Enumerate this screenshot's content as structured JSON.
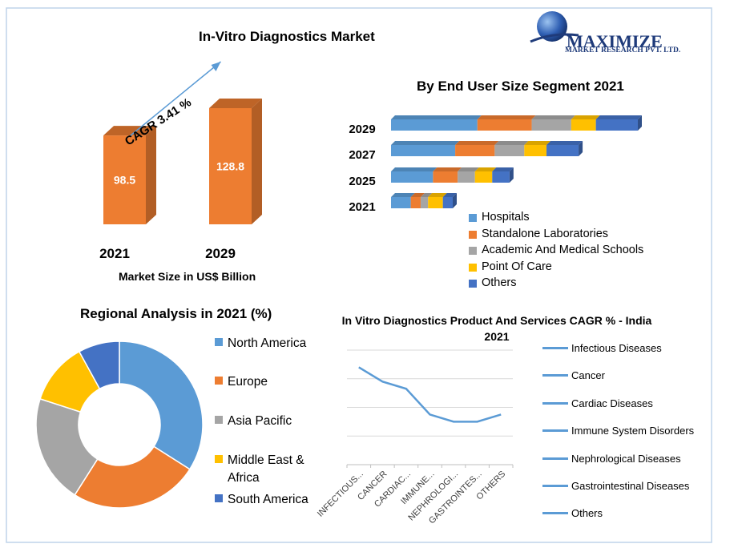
{
  "page_title": "In-Vitro Diagnostics Market",
  "brand": {
    "name": "MAXIMIZE",
    "tagline": "MARKET RESEARCH PVT. LTD."
  },
  "colors": {
    "orange_bar": "#ED7D31",
    "blue": "#5B9BD5",
    "orange": "#ED7D31",
    "gray": "#A5A5A5",
    "yellow": "#FFC000",
    "dark_blue": "#4472C4",
    "border": "#BFD4EA"
  },
  "chart_data": [
    {
      "type": "bar",
      "categories": [
        "2021",
        "2029"
      ],
      "values": [
        98.5,
        128.8
      ],
      "title": "",
      "xlabel": "Market Size in US$ Billion",
      "annotation": "CAGR 3.41 %"
    },
    {
      "type": "bar",
      "orientation": "horizontal-stacked",
      "title": "By End User Size Segment 2021",
      "categories": [
        "2029",
        "2027",
        "2025",
        "2021"
      ],
      "series": [
        {
          "name": "Hospitals",
          "values": [
            35,
            26,
            17,
            8
          ]
        },
        {
          "name": "Standalone Laboratories",
          "values": [
            22,
            16,
            10,
            4
          ]
        },
        {
          "name": "Academic And Medical Schools",
          "values": [
            16,
            12,
            7,
            3
          ]
        },
        {
          "name": "Point Of Care",
          "values": [
            10,
            9,
            7,
            6
          ]
        },
        {
          "name": "Others",
          "values": [
            17,
            13,
            7,
            4
          ]
        }
      ]
    },
    {
      "type": "pie",
      "style": "donut",
      "title": "Regional Analysis in 2021 (%)",
      "labels": [
        "North America",
        "Europe",
        "Asia Pacific",
        "Middle East & Africa",
        "South America"
      ],
      "values": [
        34,
        25,
        21,
        12,
        8
      ]
    },
    {
      "type": "line",
      "title": "In Vitro Diagnostics Product And Services CAGR % - India 2021",
      "categories": [
        "INFECTIOUS...",
        "CANCER",
        "CARDIAC...",
        "IMMUNE...",
        "NEPHROLOGI...",
        "GASTROINTES...",
        "OTHERS"
      ],
      "values": [
        6.8,
        5.8,
        5.3,
        3.5,
        3.0,
        3.0,
        3.5
      ],
      "ylim": [
        0,
        8
      ],
      "grid": true,
      "legend": [
        "Infectious Diseases",
        "Cancer",
        "Cardiac Diseases",
        "Immune System Disorders",
        "Nephrological Diseases",
        "Gastrointestinal Diseases",
        "Others"
      ],
      "legend_position": "right"
    }
  ]
}
